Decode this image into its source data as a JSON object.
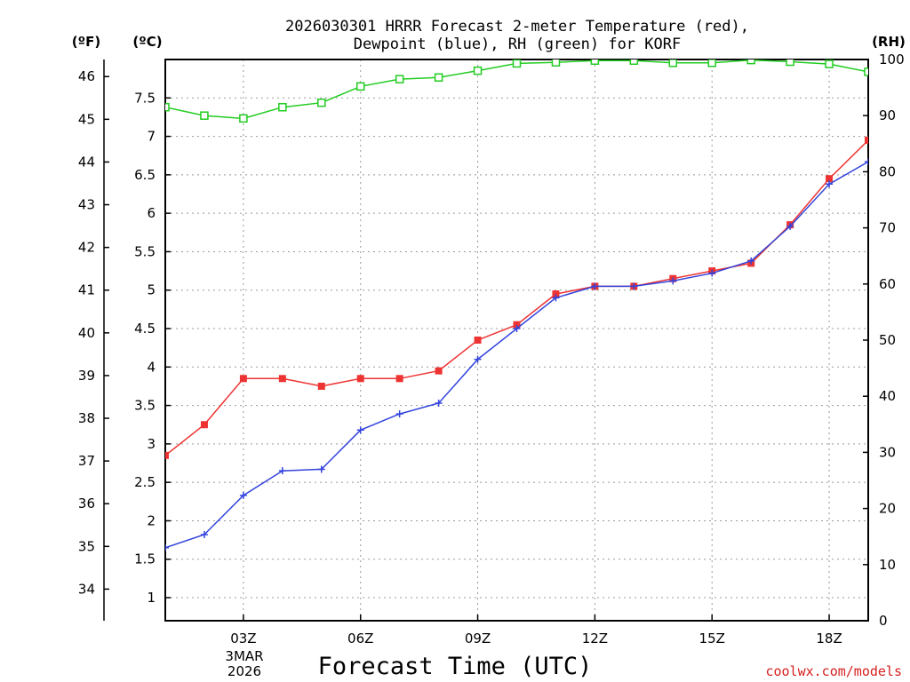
{
  "chart_data": {
    "type": "line",
    "title_line1": "2026030301 HRRR Forecast 2-meter Temperature (red),",
    "title_line2": "Dewpoint (blue), RH (green) for KORF",
    "xlabel": "Forecast Time (UTC)",
    "credit": "coolwx.com/models",
    "unit_labels": {
      "fahrenheit": "(ºF)",
      "celsius": "(ºC)",
      "rh": "(RH)"
    },
    "x_range": [
      1,
      19
    ],
    "x_ticks": [
      {
        "x": 3,
        "label": "03Z"
      },
      {
        "x": 6,
        "label": "06Z"
      },
      {
        "x": 9,
        "label": "09Z"
      },
      {
        "x": 12,
        "label": "12Z"
      },
      {
        "x": 15,
        "label": "15Z"
      },
      {
        "x": 18,
        "label": "18Z"
      }
    ],
    "date_label_line1": "3MAR",
    "date_label_line2": "2026",
    "celsius_axis": {
      "range": [
        0.7,
        8.0
      ],
      "ticks": [
        1,
        1.5,
        2,
        2.5,
        3,
        3.5,
        4,
        4.5,
        5,
        5.5,
        6,
        6.5,
        7,
        7.5
      ]
    },
    "fahrenheit_axis": {
      "ticks": [
        34,
        35,
        36,
        37,
        38,
        39,
        40,
        41,
        42,
        43,
        44,
        45,
        46
      ]
    },
    "rh_axis": {
      "range": [
        0,
        100
      ],
      "ticks": [
        0,
        10,
        20,
        30,
        40,
        50,
        60,
        70,
        80,
        90,
        100
      ]
    },
    "x": [
      1,
      2,
      3,
      4,
      5,
      6,
      7,
      8,
      9,
      10,
      11,
      12,
      13,
      14,
      15,
      16,
      17,
      18,
      19
    ],
    "series": [
      {
        "name": "Temperature",
        "units": "C",
        "color": "#ee3333",
        "marker": "filled-square",
        "values": [
          2.85,
          3.25,
          3.85,
          3.85,
          3.75,
          3.85,
          3.85,
          3.95,
          4.35,
          4.55,
          4.95,
          5.05,
          5.05,
          5.15,
          5.25,
          5.35,
          5.85,
          6.45,
          6.95
        ]
      },
      {
        "name": "Dewpoint",
        "units": "C",
        "color": "#3344dd",
        "marker": "plus",
        "values": [
          1.65,
          1.82,
          2.33,
          2.65,
          2.67,
          3.18,
          3.39,
          3.53,
          4.1,
          4.5,
          4.9,
          5.05,
          5.05,
          5.12,
          5.22,
          5.38,
          5.83,
          6.38,
          6.67
        ]
      },
      {
        "name": "RH",
        "units": "%",
        "color": "#22cc22",
        "marker": "open-square",
        "values": [
          91.5,
          90,
          89.5,
          91.5,
          92.3,
          95.2,
          96.5,
          96.8,
          98,
          99.3,
          99.5,
          99.8,
          99.8,
          99.4,
          99.4,
          99.9,
          99.6,
          99.2,
          97.8
        ]
      }
    ]
  }
}
